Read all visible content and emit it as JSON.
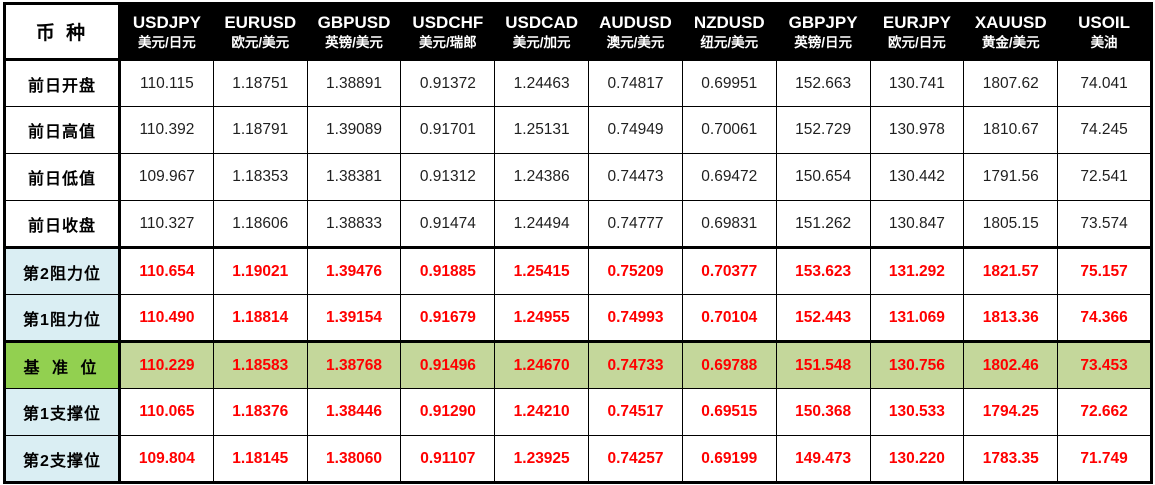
{
  "colors": {
    "header_bg": "#000000",
    "header_text": "#FFFFFF",
    "corner_bg": "#FFFFFF",
    "label_blue_bg": "#DAEEF3",
    "pivot_label_bg": "#92D050",
    "pivot_cell_bg": "#C4D79B",
    "value_red": "#FF0000",
    "border": "#000000"
  },
  "table": {
    "corner_label": "币 种",
    "columns": [
      {
        "code": "USDJPY",
        "name": "美元/日元"
      },
      {
        "code": "EURUSD",
        "name": "欧元/美元"
      },
      {
        "code": "GBPUSD",
        "name": "英镑/美元"
      },
      {
        "code": "USDCHF",
        "name": "美元/瑞郎"
      },
      {
        "code": "USDCAD",
        "name": "美元/加元"
      },
      {
        "code": "AUDUSD",
        "name": "澳元/美元"
      },
      {
        "code": "NZDUSD",
        "name": "纽元/美元"
      },
      {
        "code": "GBPJPY",
        "name": "英镑/日元"
      },
      {
        "code": "EURJPY",
        "name": "欧元/日元"
      },
      {
        "code": "XAUUSD",
        "name": "黄金/美元"
      },
      {
        "code": "USOIL",
        "name": "美油"
      }
    ],
    "rows": [
      {
        "label": "前日开盘",
        "style": "plain",
        "values": [
          "110.115",
          "1.18751",
          "1.38891",
          "0.91372",
          "1.24463",
          "0.74817",
          "0.69951",
          "152.663",
          "130.741",
          "1807.62",
          "74.041"
        ]
      },
      {
        "label": "前日高值",
        "style": "plain",
        "values": [
          "110.392",
          "1.18791",
          "1.39089",
          "0.91701",
          "1.25131",
          "0.74949",
          "0.70061",
          "152.729",
          "130.978",
          "1810.67",
          "74.245"
        ]
      },
      {
        "label": "前日低值",
        "style": "plain",
        "values": [
          "109.967",
          "1.18353",
          "1.38381",
          "0.91312",
          "1.24386",
          "0.74473",
          "0.69472",
          "150.654",
          "130.442",
          "1791.56",
          "72.541"
        ]
      },
      {
        "label": "前日收盘",
        "style": "plain",
        "thick_bottom": true,
        "values": [
          "110.327",
          "1.18606",
          "1.38833",
          "0.91474",
          "1.24494",
          "0.74777",
          "0.69831",
          "151.262",
          "130.847",
          "1805.15",
          "73.574"
        ]
      },
      {
        "label": "第2阻力位",
        "style": "level",
        "values": [
          "110.654",
          "1.19021",
          "1.39476",
          "0.91885",
          "1.25415",
          "0.75209",
          "0.70377",
          "153.623",
          "131.292",
          "1821.57",
          "75.157"
        ]
      },
      {
        "label": "第1阻力位",
        "style": "level",
        "thick_bottom": true,
        "values": [
          "110.490",
          "1.18814",
          "1.39154",
          "0.91679",
          "1.24955",
          "0.74993",
          "0.70104",
          "152.443",
          "131.069",
          "1813.36",
          "74.366"
        ]
      },
      {
        "label": "基 准 位",
        "style": "pivot",
        "values": [
          "110.229",
          "1.18583",
          "1.38768",
          "0.91496",
          "1.24670",
          "0.74733",
          "0.69788",
          "151.548",
          "130.756",
          "1802.46",
          "73.453"
        ]
      },
      {
        "label": "第1支撑位",
        "style": "level",
        "values": [
          "110.065",
          "1.18376",
          "1.38446",
          "0.91290",
          "1.24210",
          "0.74517",
          "0.69515",
          "150.368",
          "130.533",
          "1794.25",
          "72.662"
        ]
      },
      {
        "label": "第2支撑位",
        "style": "level",
        "values": [
          "109.804",
          "1.18145",
          "1.38060",
          "0.91107",
          "1.23925",
          "0.74257",
          "0.69199",
          "149.473",
          "130.220",
          "1783.35",
          "71.749"
        ]
      }
    ]
  }
}
